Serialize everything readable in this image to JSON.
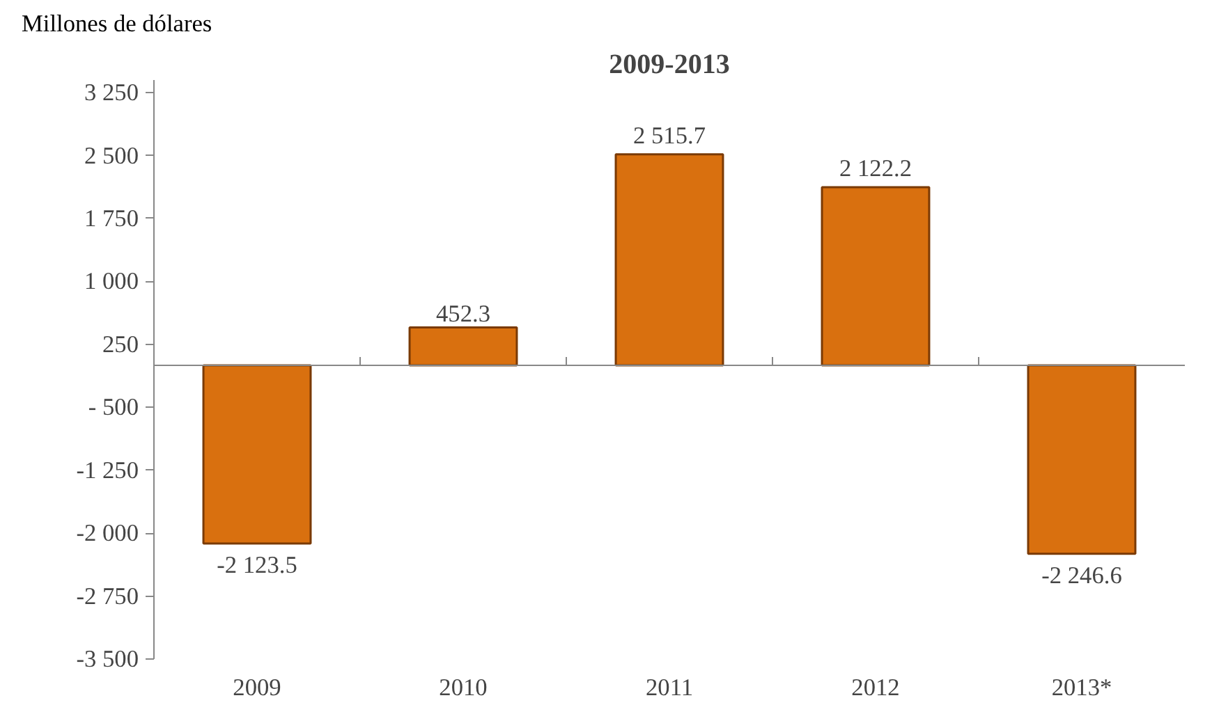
{
  "chart_data": {
    "type": "bar",
    "title": "2009-2013",
    "ylabel": "Millones de dólares",
    "categories": [
      "2009",
      "2010",
      "2011",
      "2012",
      "2013*"
    ],
    "values": [
      -2123.5,
      452.3,
      2515.7,
      2122.2,
      -2246.6
    ],
    "value_labels": [
      "-2 123.5",
      "452.3",
      "2 515.7",
      "2 122.2",
      "-2 246.6"
    ],
    "color": "#d9700f",
    "ylim": [
      -3500,
      3400
    ],
    "yticks": [
      {
        "value": 3250,
        "label": "3 250"
      },
      {
        "value": 2500,
        "label": "2 500"
      },
      {
        "value": 1750,
        "label": "1 750"
      },
      {
        "value": 1000,
        "label": "1 000"
      },
      250,
      {
        "value": -500,
        "label": "- 500"
      },
      {
        "value": -1250,
        "label": "-1 250"
      },
      {
        "value": -2000,
        "label": "-2 000"
      },
      {
        "value": -2750,
        "label": "-2 750"
      },
      {
        "value": -3500,
        "label": "-3 500"
      }
    ],
    "grid": false
  }
}
